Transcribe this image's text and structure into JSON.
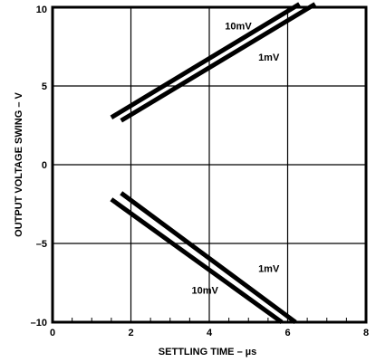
{
  "chart_data": {
    "type": "line",
    "xlabel": "SETTLING TIME – µs",
    "ylabel": "OUTPUT VOLTAGE SWING – V",
    "xlim": [
      0,
      8
    ],
    "ylim": [
      -10,
      10
    ],
    "x_ticks": [
      "0",
      "2",
      "4",
      "6",
      "8"
    ],
    "y_ticks": [
      "10",
      "5",
      "0",
      "–5",
      "–10"
    ],
    "x_tick_values": [
      0,
      2,
      4,
      6,
      8
    ],
    "y_tick_values": [
      10,
      5,
      0,
      -5,
      -10
    ],
    "grid": true,
    "curve_labels": [
      "10mV",
      "1mV",
      "1mV",
      "10mV"
    ],
    "series": [
      {
        "name": "10mV",
        "x": [
          1.5,
          6.3
        ],
        "y": [
          3.0,
          10.2
        ]
      },
      {
        "name": "1mV",
        "x": [
          1.75,
          6.7
        ],
        "y": [
          2.8,
          10.2
        ]
      },
      {
        "name": "1mV",
        "x": [
          1.75,
          6.2
        ],
        "y": [
          -1.8,
          -10.0
        ]
      },
      {
        "name": "10mV",
        "x": [
          1.5,
          5.85
        ],
        "y": [
          -2.2,
          -10.0
        ]
      }
    ]
  }
}
